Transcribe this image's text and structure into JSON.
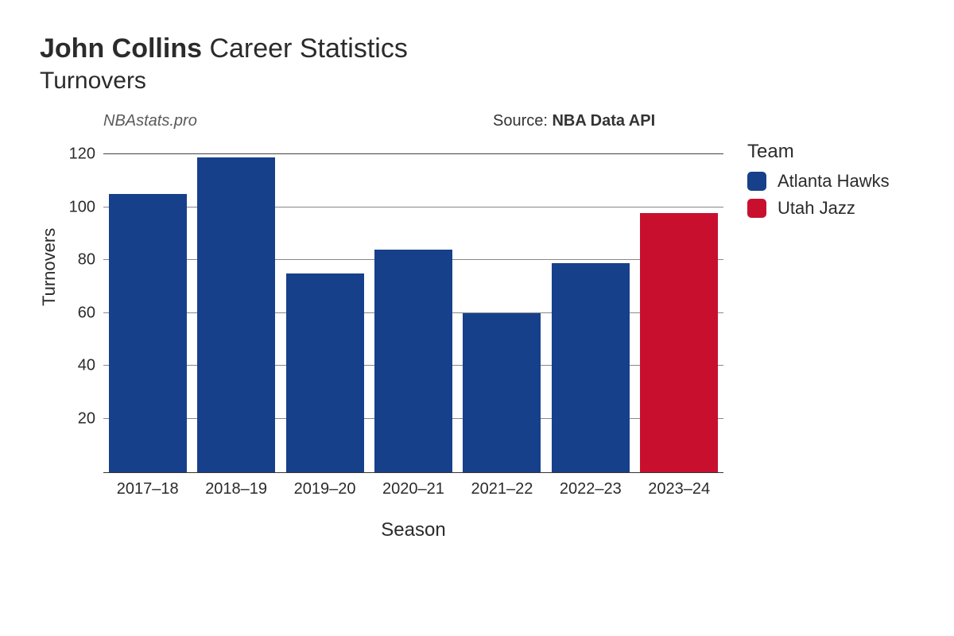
{
  "title": {
    "player_name": "John Collins",
    "line1_rest": " Career Statistics",
    "line2": "Turnovers"
  },
  "watermark": "NBAstats.pro",
  "source": {
    "prefix": "Source: ",
    "name": "NBA Data API"
  },
  "chart": {
    "type": "bar",
    "x_label": "Season",
    "y_label": "Turnovers",
    "categories": [
      "2017–18",
      "2018–19",
      "2019–20",
      "2020–21",
      "2021–22",
      "2022–23",
      "2023–24"
    ],
    "values": [
      105,
      119,
      75,
      84,
      60,
      79,
      98
    ],
    "bar_colors": [
      "#17408b",
      "#17408b",
      "#17408b",
      "#17408b",
      "#17408b",
      "#17408b",
      "#c8102e"
    ],
    "ylim": [
      0,
      126
    ],
    "yticks": [
      0,
      20,
      40,
      60,
      80,
      100,
      120
    ],
    "grid_color": "#888888",
    "grid_top_color": "#444444",
    "background_color": "#ffffff",
    "bar_width": 0.88,
    "label_fontsize": 20,
    "axis_title_fontsize": 24
  },
  "legend": {
    "title": "Team",
    "items": [
      {
        "label": "Atlanta Hawks",
        "color": "#17408b"
      },
      {
        "label": "Utah Jazz",
        "color": "#c8102e"
      }
    ]
  }
}
